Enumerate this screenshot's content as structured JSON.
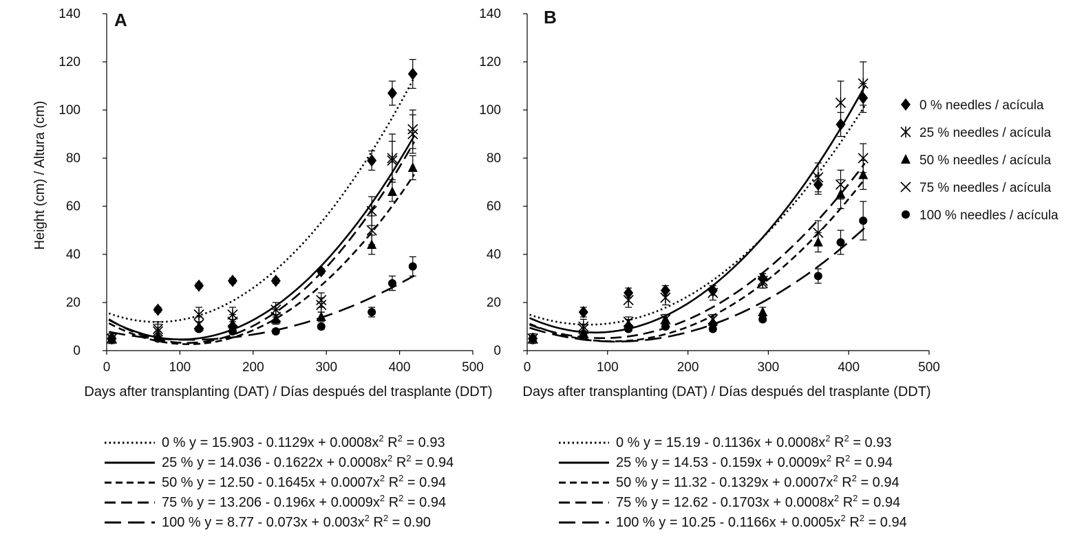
{
  "figure": {
    "ylabel": "Height  (cm) / Altura (cm)",
    "xlabel": "Days after transplanting (DAT) / Días después del trasplante (DDT)",
    "legend": [
      {
        "series": "0",
        "label": "0 % needles / acícula",
        "marker": "diamond"
      },
      {
        "series": "25",
        "label": "25 % needles / acícula",
        "marker": "star"
      },
      {
        "series": "50",
        "label": "50 % needles / acícula",
        "marker": "triangle"
      },
      {
        "series": "75",
        "label": "75 % needles / acícula",
        "marker": "x"
      },
      {
        "series": "100",
        "label": "100 % needles / acícula",
        "marker": "circle"
      }
    ]
  },
  "chart_data": [
    {
      "panel": "A",
      "type": "scatter",
      "xlabel": "Days after transplanting (DAT) / Días después del trasplante (DDT)",
      "ylabel": "Height  (cm) / Altura (cm)",
      "xlim": [
        0,
        500
      ],
      "ylim": [
        0,
        140
      ],
      "xticks": [
        0,
        100,
        200,
        300,
        400,
        500
      ],
      "yticks": [
        0,
        20,
        40,
        60,
        80,
        100,
        120,
        140
      ],
      "x": [
        7,
        70,
        126,
        172,
        231,
        293,
        362,
        390,
        418
      ],
      "series": [
        {
          "name": "0",
          "marker": "diamond",
          "line": "dotted",
          "values": [
            5,
            17,
            27,
            29,
            29,
            33,
            79,
            107,
            115
          ],
          "errors": [
            2,
            1,
            1,
            1,
            1,
            1,
            4,
            5,
            6
          ],
          "equation": {
            "prefix": "0 % y = 15.903 - 0.1129x + 0.0008x",
            "r2": " R",
            "r2_value": " = 0.93"
          }
        },
        {
          "name": "25",
          "marker": "star",
          "line": "solid",
          "values": [
            5,
            8,
            15,
            15,
            17,
            19,
            58,
            80,
            92
          ],
          "errors": [
            2,
            3,
            3,
            3,
            3,
            3,
            6,
            10,
            8
          ],
          "equation": {
            "prefix": "25 % y = 14.036 - 0.1622x + 0.0008x",
            "r2": " R",
            "r2_value": " = 0.94"
          }
        },
        {
          "name": "50",
          "marker": "triangle",
          "line": "short-dash",
          "values": [
            5,
            6,
            10,
            11,
            13,
            14,
            44,
            66,
            76
          ],
          "errors": [
            2,
            2,
            2,
            2,
            2,
            2,
            4,
            4,
            5
          ],
          "equation": {
            "prefix": "50 % y = 12.50 - 0.1645x + 0.0007x",
            "r2": " R",
            "r2_value": " = 0.94"
          }
        },
        {
          "name": "75",
          "marker": "x",
          "line": "medium-dash",
          "values": [
            5,
            9,
            11,
            12,
            14,
            21,
            50,
            79,
            90
          ],
          "errors": [
            2,
            3,
            3,
            3,
            3,
            3,
            6,
            8,
            8
          ],
          "equation": {
            "prefix": "75 % y = 13.206 - 0.196x + 0.0009x",
            "r2": " R",
            "r2_value": " = 0.94"
          }
        },
        {
          "name": "100",
          "marker": "circle",
          "line": "long-dash",
          "values": [
            5,
            5,
            9,
            8,
            8,
            10,
            16,
            28,
            35
          ],
          "errors": [
            1,
            1,
            1,
            1,
            1,
            1,
            2,
            3,
            4
          ],
          "equation": {
            "prefix": "100 % y = 8.77 - 0.073x + 0.003x",
            "r2": " R",
            "r2_value": " = 0.90"
          }
        }
      ]
    },
    {
      "panel": "B",
      "type": "scatter",
      "xlabel": "Days after transplanting (DAT) / Días después del trasplante (DDT)",
      "xlim": [
        0,
        500
      ],
      "ylim": [
        0,
        140
      ],
      "xticks": [
        0,
        100,
        200,
        300,
        400,
        500
      ],
      "yticks": [
        0,
        20,
        40,
        60,
        80,
        100,
        120,
        140
      ],
      "x": [
        7,
        70,
        126,
        172,
        231,
        293,
        362,
        390,
        418
      ],
      "series": [
        {
          "name": "0",
          "marker": "diamond",
          "line": "dotted",
          "values": [
            5,
            16,
            24,
            25,
            25,
            30,
            69,
            94,
            105
          ],
          "errors": [
            1,
            2,
            2,
            2,
            2,
            2,
            4,
            5,
            6
          ],
          "equation": {
            "prefix": "0 % y = 15.19 - 0.1136x + 0.0008x",
            "r2": " R",
            "r2_value": " = 0.93"
          }
        },
        {
          "name": "25",
          "marker": "star",
          "line": "solid",
          "values": [
            5,
            10,
            21,
            22,
            24,
            29,
            72,
            103,
            111
          ],
          "errors": [
            2,
            3,
            3,
            3,
            3,
            3,
            6,
            9,
            9
          ],
          "equation": {
            "prefix": "25 % y = 14.53 - 0.159x + 0.0009x",
            "r2": " R",
            "r2_value": " = 0.94"
          }
        },
        {
          "name": "50",
          "marker": "triangle",
          "line": "short-dash",
          "values": [
            5,
            7,
            11,
            13,
            12,
            16,
            45,
            65,
            73
          ],
          "errors": [
            1,
            1,
            2,
            2,
            2,
            2,
            4,
            6,
            6
          ],
          "equation": {
            "prefix": "50 % y = 11.32 - 0.1329x + 0.0007x",
            "r2": " R",
            "r2_value": " = 0.94"
          }
        },
        {
          "name": "75",
          "marker": "x",
          "line": "medium-dash",
          "values": [
            5,
            9,
            12,
            13,
            13,
            28,
            49,
            69,
            80
          ],
          "errors": [
            2,
            2,
            2,
            2,
            2,
            2,
            5,
            6,
            6
          ],
          "equation": {
            "prefix": "75 % y = 12.62 - 0.1703x + 0.0008x",
            "r2": " R",
            "r2_value": " = 0.94"
          }
        },
        {
          "name": "100",
          "marker": "circle",
          "line": "long-dash",
          "values": [
            5,
            6,
            9,
            10,
            9,
            13,
            31,
            45,
            54
          ],
          "errors": [
            1,
            1,
            1,
            1,
            1,
            1,
            3,
            5,
            8
          ],
          "equation": {
            "prefix": "100 % y = 10.25 - 0.1166x + 0.0005x",
            "r2": " R",
            "r2_value": " = 0.94"
          }
        }
      ]
    }
  ]
}
